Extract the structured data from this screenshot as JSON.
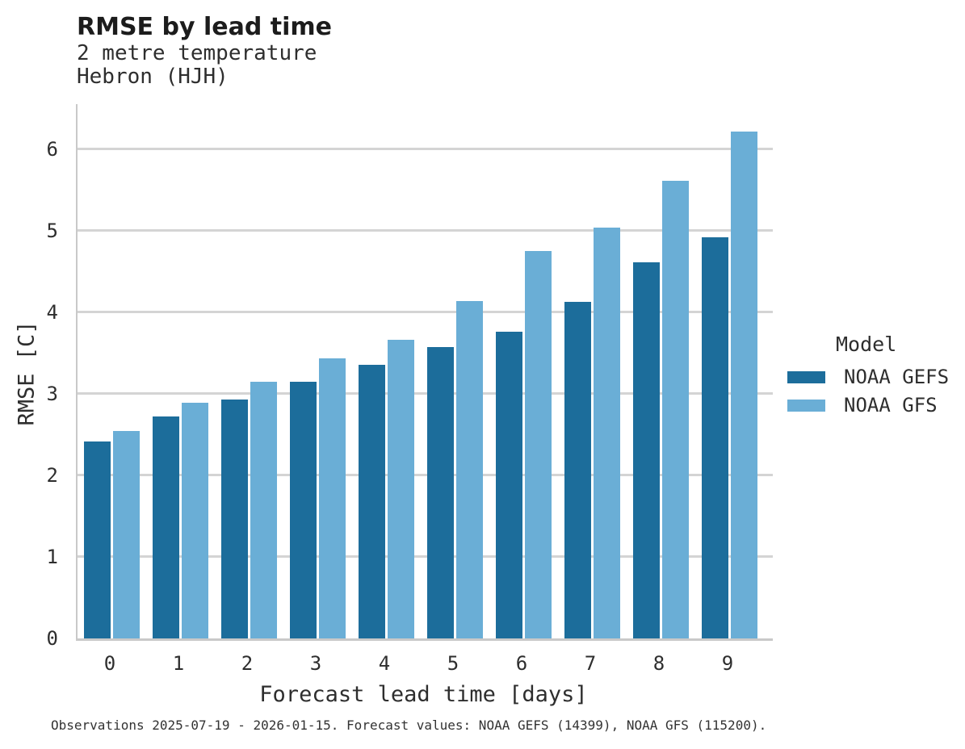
{
  "chart_data": {
    "type": "bar",
    "title": "RMSE by lead time",
    "subtitle_lines": [
      "2 metre temperature",
      "Hebron (HJH)"
    ],
    "xlabel": "Forecast lead time [days]",
    "ylabel": "RMSE [C]",
    "categories": [
      "0",
      "1",
      "2",
      "3",
      "4",
      "5",
      "6",
      "7",
      "8",
      "9"
    ],
    "series": [
      {
        "name": "NOAA GEFS",
        "color": "#1c6d9b",
        "values": [
          2.41,
          2.72,
          2.93,
          3.15,
          3.35,
          3.57,
          3.76,
          4.13,
          4.61,
          4.92
        ]
      },
      {
        "name": "NOAA GFS",
        "color": "#6aaed6",
        "values": [
          2.54,
          2.89,
          3.15,
          3.43,
          3.66,
          4.14,
          4.75,
          5.04,
          5.61,
          6.21
        ]
      }
    ],
    "ylim": [
      0,
      6.55
    ],
    "yticks": [
      0,
      1,
      2,
      3,
      4,
      5,
      6
    ],
    "grid": "horizontal",
    "legend": {
      "title": "Model",
      "position": "right"
    }
  },
  "caption": "Observations 2025-07-19 - 2026-01-15. Forecast values: NOAA GEFS (14399), NOAA GFS (115200).",
  "colors": {
    "background": "#ffffff",
    "grid": "#d4d4d4",
    "spine": "#c9c9c9",
    "title_text": "#1c1c1c",
    "text": "#2e2e2e"
  }
}
